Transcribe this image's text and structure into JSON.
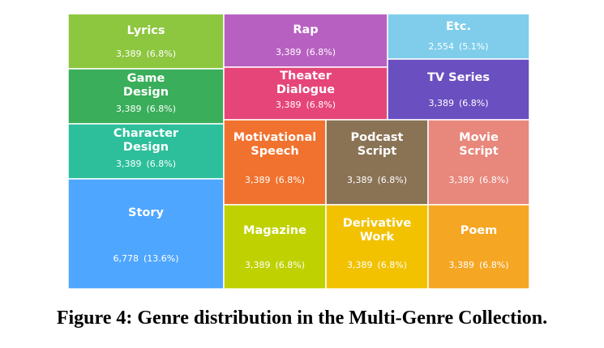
{
  "chart_data": {
    "type": "treemap",
    "cells": [
      {
        "label": "Lyrics",
        "count": "3,389",
        "share": "(6.8%)",
        "value": 3389,
        "color": "#8DC63F"
      },
      {
        "label": "Game Design",
        "count": "3,389",
        "share": "(6.8%)",
        "value": 3389,
        "color": "#3AAE5A"
      },
      {
        "label": "Character Design",
        "count": "3,389",
        "share": "(6.8%)",
        "value": 3389,
        "color": "#2DBF9B"
      },
      {
        "label": "Story",
        "count": "6,778",
        "share": "(13.6%)",
        "value": 6778,
        "color": "#4FA6FF"
      },
      {
        "label": "Rap",
        "count": "3,389",
        "share": "(6.8%)",
        "value": 3389,
        "color": "#B860C1"
      },
      {
        "label": "Theater Dialogue",
        "count": "3,389",
        "share": "(6.8%)",
        "value": 3389,
        "color": "#E6457A"
      },
      {
        "label": "Etc.",
        "count": "2,554",
        "share": "(5.1%)",
        "value": 2554,
        "color": "#7FCDEB"
      },
      {
        "label": "TV Series",
        "count": "3,389",
        "share": "(6.8%)",
        "value": 3389,
        "color": "#6A4FC1"
      },
      {
        "label": "Motivational Speech",
        "count": "3,389",
        "share": "(6.8%)",
        "value": 3389,
        "color": "#F0722E"
      },
      {
        "label": "Podcast Script",
        "count": "3,389",
        "share": "(6.8%)",
        "value": 3389,
        "color": "#8A7355"
      },
      {
        "label": "Movie Script",
        "count": "3,389",
        "share": "(6.8%)",
        "value": 3389,
        "color": "#E8877B"
      },
      {
        "label": "Magazine",
        "count": "3,389",
        "share": "(6.8%)",
        "value": 3389,
        "color": "#BFD100"
      },
      {
        "label": "Derivative Work",
        "count": "3,389",
        "share": "(6.8%)",
        "value": 3389,
        "color": "#F2C200"
      },
      {
        "label": "Poem",
        "count": "3,389",
        "share": "(6.8%)",
        "value": 3389,
        "color": "#F5A623"
      }
    ]
  },
  "caption": "Figure 4: Genre distribution in the Multi-Genre Collection."
}
